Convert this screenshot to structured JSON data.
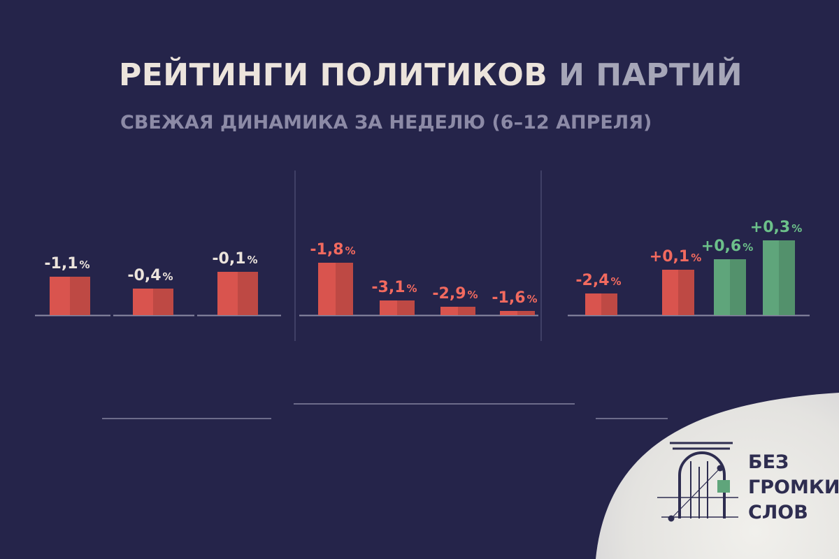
{
  "header": {
    "title_main": "РЕЙТИНГИ ПОЛИТИКОВ",
    "title_accent": " И ПАРТИЙ",
    "subtitle": "СВЕЖАЯ ДИНАМИКА ЗА НЕДЕЛЮ (6–12 АПРЕЛЯ)"
  },
  "logo": {
    "line1": "БЕЗ",
    "line2": "ГРОМКИХ",
    "line3": "СЛОВ"
  },
  "colors": {
    "negative": "#d9544e",
    "positive": "#5fa57b",
    "negative_label": "#f26a5f",
    "positive_label": "#6cc08a",
    "neutral_label": "#ece4dc"
  },
  "chart_data": [
    {
      "type": "bar",
      "values": [
        -1.1,
        -0.4,
        -0.1
      ],
      "labels": [
        "-1,1",
        "-0,4",
        "-0,1"
      ],
      "unit": "%"
    },
    {
      "type": "bar",
      "values": [
        -1.8,
        -3.1,
        -2.9,
        -1.6
      ],
      "labels": [
        "-1,8",
        "-3,1",
        "-2,9",
        "-1,6"
      ],
      "unit": "%"
    },
    {
      "type": "bar",
      "values": [
        -2.4,
        0.1,
        0.6,
        0.3
      ],
      "labels": [
        "-2,4",
        "+0,1",
        "+0,6",
        "+0,3"
      ],
      "unit": "%"
    }
  ]
}
